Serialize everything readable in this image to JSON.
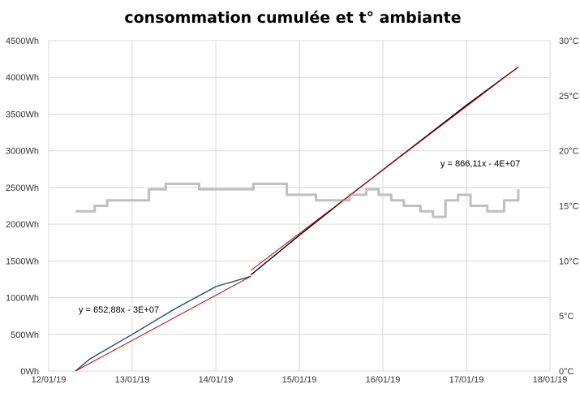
{
  "chart_data": {
    "type": "line",
    "title": "consommation cumulée et t° ambiante",
    "xlabel": "",
    "ylabel": "",
    "y2label": "",
    "x_ticks": [
      "12/01/19",
      "13/01/19",
      "14/01/19",
      "15/01/19",
      "16/01/19",
      "17/01/19",
      "18/01/19"
    ],
    "xlim": [
      "12/01/19",
      "18/01/19"
    ],
    "y_ticks": [
      "0Wh",
      "500Wh",
      "1000Wh",
      "1500Wh",
      "2000Wh",
      "2500Wh",
      "3000Wh",
      "3500Wh",
      "4000Wh",
      "4500Wh"
    ],
    "ylim": [
      0,
      4500
    ],
    "y2_ticks": [
      "0°C",
      "5°C",
      "10°C",
      "15°C",
      "20°C",
      "25°C",
      "30°C"
    ],
    "y2lim": [
      0,
      30
    ],
    "grid": true,
    "colors": {
      "consumption_before": "#1f4e79",
      "consumption_after": "#000000",
      "trend": "#c00000",
      "temperature": "#bfbfbf",
      "grid": "#d9d9d9"
    },
    "series": [
      {
        "axis": "left",
        "x_days": [
          0.32,
          0.5,
          1.0,
          1.5,
          2.0,
          2.42
        ],
        "values": [
          0,
          170,
          500,
          840,
          1150,
          1290
        ]
      },
      {
        "axis": "left",
        "x_days": [
          2.42,
          3.0,
          3.5,
          4.0,
          4.5,
          5.0,
          5.62
        ],
        "values": [
          1310,
          1850,
          2300,
          2740,
          3180,
          3620,
          4140
        ]
      },
      {
        "axis": "right",
        "x_days": [
          0.32,
          0.45,
          0.55,
          0.7,
          0.95,
          1.2,
          1.4,
          1.6,
          1.8,
          2.0,
          2.2,
          2.45,
          2.7,
          2.85,
          3.0,
          3.2,
          3.4,
          3.6,
          3.8,
          3.95,
          4.1,
          4.25,
          4.45,
          4.6,
          4.75,
          4.9,
          5.05,
          5.25,
          5.45,
          5.62
        ],
        "values": [
          14.5,
          14.5,
          15.0,
          15.5,
          15.5,
          16.5,
          17.0,
          17.0,
          16.5,
          16.5,
          16.5,
          17.0,
          17.0,
          16.0,
          16.0,
          15.5,
          15.5,
          16.0,
          16.5,
          16.0,
          15.5,
          15.0,
          14.5,
          14.0,
          15.5,
          16.0,
          15.0,
          14.5,
          15.5,
          16.5
        ]
      }
    ],
    "trendlines": [
      {
        "equation": "y = 652,88x - 3E+07",
        "x_days": [
          0.32,
          2.42
        ],
        "values": [
          0,
          1290
        ]
      },
      {
        "equation": "y = 866,11x - 4E+07",
        "x_days": [
          2.42,
          5.62
        ],
        "values": [
          1370,
          4140
        ]
      }
    ]
  }
}
